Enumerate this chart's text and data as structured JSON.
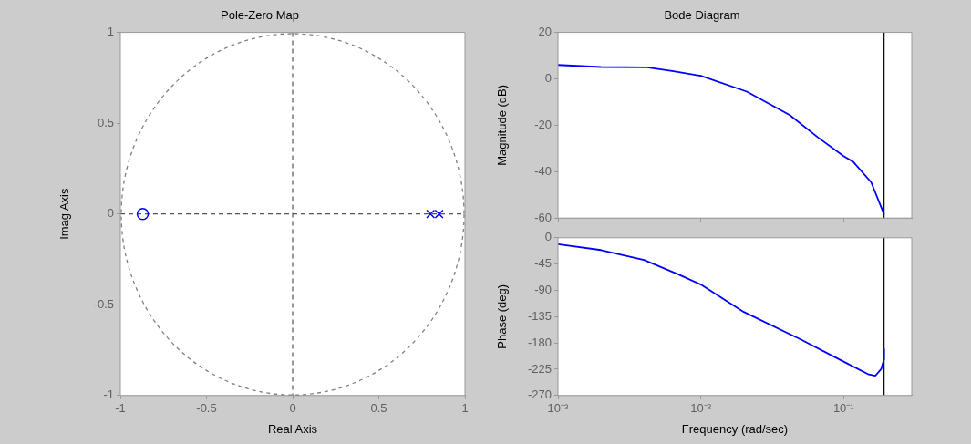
{
  "chart_data": [
    {
      "type": "scatter",
      "title": "Pole-Zero Map",
      "xlabel": "Real Axis",
      "ylabel": "Imag Axis",
      "xlim": [
        -1,
        1
      ],
      "ylim": [
        -1,
        1
      ],
      "xticks": [
        -1,
        -0.5,
        0,
        0.5,
        1
      ],
      "yticks": [
        -1,
        -0.5,
        0,
        0.5,
        1
      ],
      "grid": false,
      "legend": false,
      "ref_lines": [
        {
          "axis": "x",
          "value": 0,
          "color": "#555555",
          "line_style": "dashed"
        },
        {
          "axis": "y",
          "value": 0,
          "color": "#555555",
          "line_style": "dashed"
        }
      ],
      "series": [
        {
          "type": "scatter",
          "color": "#0000ff",
          "marker": "circle",
          "x": [
            -0.87
          ],
          "values": [
            0
          ]
        },
        {
          "type": "scatter",
          "color": "#0000ff",
          "marker": "cross",
          "x": [
            0.8,
            0.85
          ],
          "values": [
            0,
            0
          ]
        }
      ]
    },
    {
      "type": "line",
      "title": "Bode Diagram",
      "ylabel": "Magnitude (dB)",
      "log": "x",
      "xlim": [
        0.001,
        0.3
      ],
      "xticks": [
        {
          "value": 0.001,
          "label": null
        },
        {
          "value": 0.01,
          "label": null
        },
        {
          "value": 0.1,
          "label": null
        }
      ],
      "ylim": [
        -60,
        20
      ],
      "yticks": [
        -60,
        -40,
        -20,
        0,
        20
      ],
      "tick_labels": "y",
      "grid": false,
      "legend": false,
      "ref_lines": [
        {
          "axis": "x",
          "value": 0.192,
          "color": "#000000",
          "line_style": "solid"
        }
      ],
      "series": [
        {
          "color": "#0000ff",
          "marker": "none",
          "x": [
            0.001,
            0.002,
            0.0042,
            0.0063,
            0.01,
            0.021,
            0.042,
            0.066,
            0.1,
            0.117,
            0.156,
            0.192
          ],
          "values": [
            6,
            5.1,
            5,
            3.4,
            1.3,
            -5.5,
            -15.6,
            -25.2,
            -33.3,
            -35.8,
            -44.6,
            -58.4
          ]
        }
      ]
    },
    {
      "type": "line",
      "xlabel": "Frequency (rad/sec)",
      "ylabel": "Phase (deg)",
      "log": "x",
      "xlim": [
        0.001,
        0.3
      ],
      "xticks": [
        {
          "value": 0.001,
          "label": "10⁻³"
        },
        {
          "value": 0.01,
          "label": "10⁻²"
        },
        {
          "value": 0.1,
          "label": "10⁻¹"
        }
      ],
      "ylim": [
        -270,
        0
      ],
      "yticks": [
        -270,
        -225,
        -180,
        -135,
        -90,
        -45,
        0
      ],
      "grid": false,
      "legend": false,
      "ref_lines": [
        {
          "axis": "x",
          "value": 0.192,
          "color": "#000000",
          "line_style": "solid"
        }
      ],
      "series": [
        {
          "color": "#0000ff",
          "marker": "none",
          "x": [
            0.001,
            0.002,
            0.004,
            0.007,
            0.01,
            0.02,
            0.05,
            0.1,
            0.15,
            0.167,
            0.183,
            0.192,
            0.192
          ],
          "values": [
            -11,
            -21,
            -38,
            -63,
            -80,
            -127,
            -174,
            -212,
            -234,
            -236,
            -225,
            -208,
            -190
          ]
        }
      ]
    }
  ]
}
